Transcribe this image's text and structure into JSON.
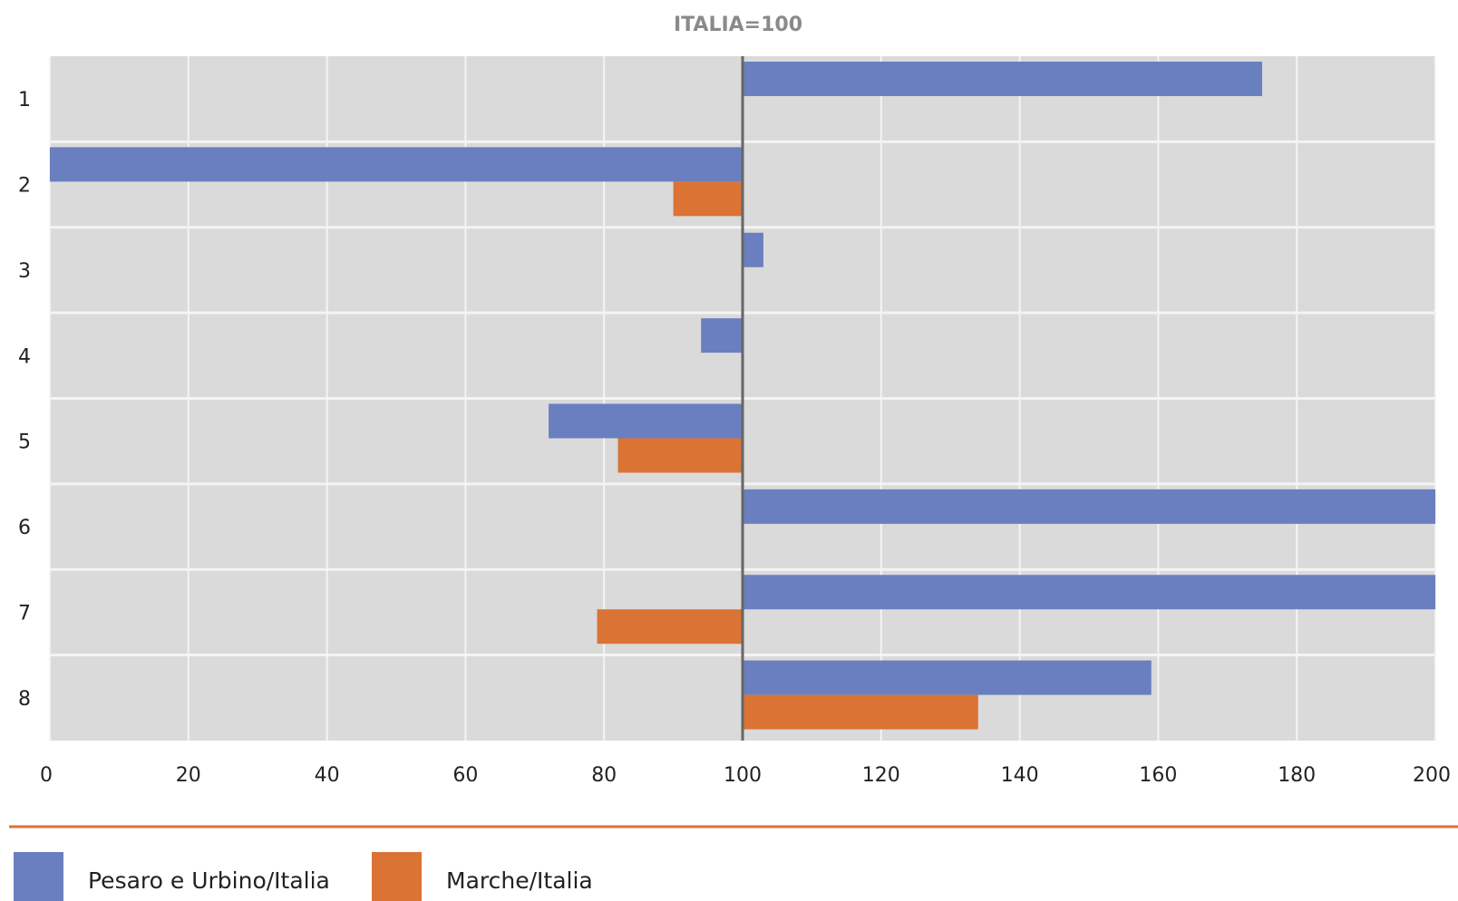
{
  "chart_data": {
    "type": "bar",
    "orientation": "horizontal",
    "subtitle": "ITALIA=100",
    "baseline": 100,
    "categories": [
      "1",
      "2",
      "3",
      "4",
      "5",
      "6",
      "7",
      "8"
    ],
    "series": [
      {
        "name": "Pesaro e Urbino/Italia",
        "color": "#6a7fc0",
        "values": [
          175,
          0,
          103,
          94,
          72,
          200,
          200,
          159
        ]
      },
      {
        "name": "Marche/Italia",
        "color": "#db7334",
        "values": [
          100,
          90,
          100,
          100,
          82,
          100,
          79,
          134
        ]
      }
    ],
    "x_ticks": [
      "0",
      "20",
      "40",
      "60",
      "80",
      "100",
      "120",
      "140",
      "160",
      "180",
      "200"
    ],
    "xlim": [
      0,
      200
    ],
    "grid": true,
    "legend_position": "bottom-left",
    "colors": {
      "plot_background": "#dadada",
      "grid": "#f4f4f4",
      "baseline_axis": "#666666",
      "separator": "#db7334"
    }
  }
}
